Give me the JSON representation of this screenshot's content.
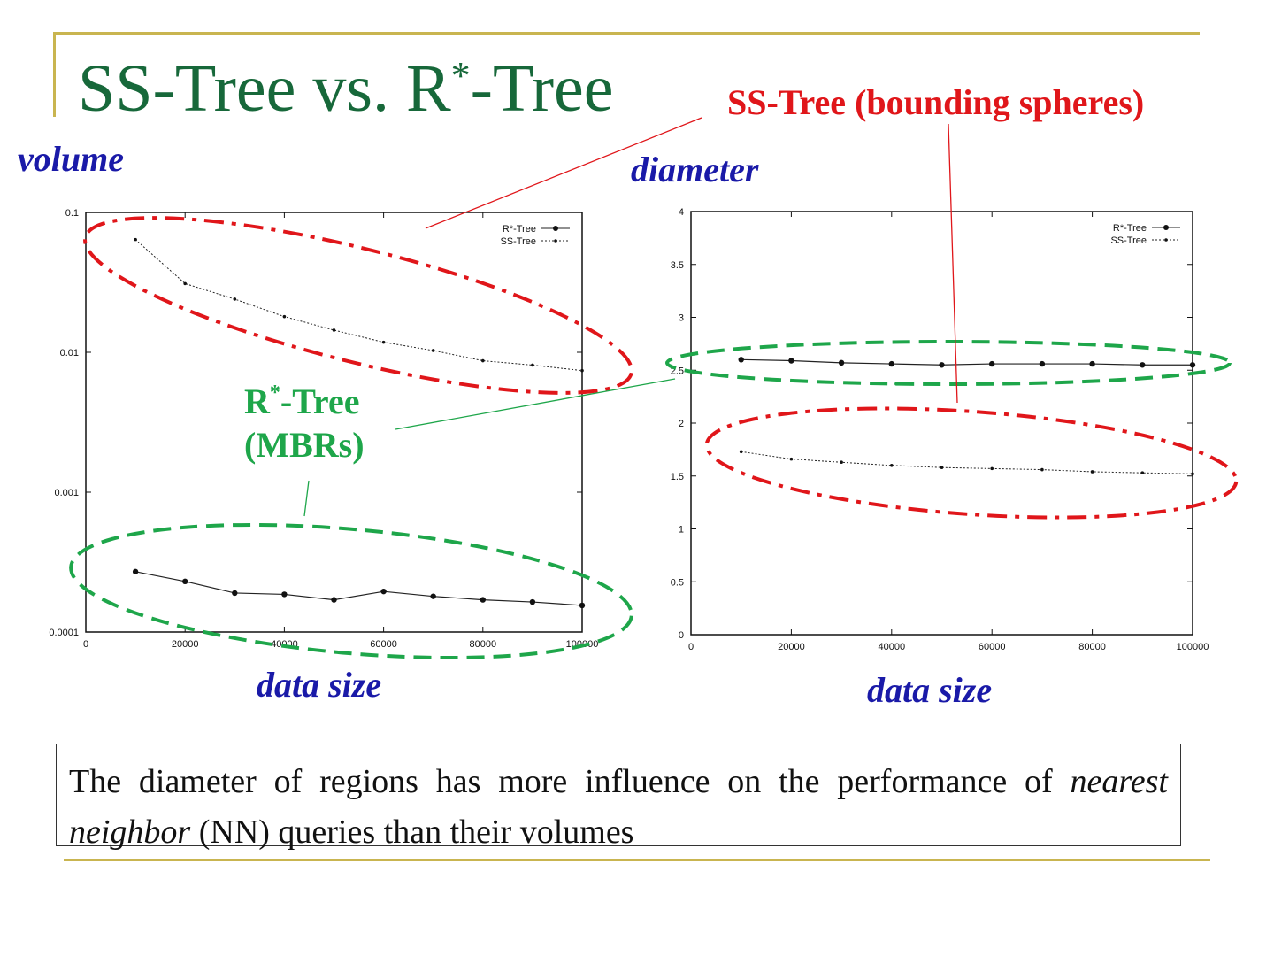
{
  "slide": {
    "title_main": "SS-Tree vs. R",
    "title_sup": "*",
    "title_end": "-Tree",
    "ss_annotation": "SS-Tree (bounding spheres)",
    "rstar_annotation_a": "R",
    "rstar_annotation_sup": "*",
    "rstar_annotation_b": "-Tree",
    "rstar_annotation_line2": "(MBRs)",
    "note_part1": "The diameter of regions has more influence on the performance of ",
    "note_italic": "nearest neighbor",
    "note_part2": " (NN) queries than their volumes",
    "colors": {
      "title": "#17683a",
      "ss": "#e0161a",
      "rstar": "#1ea64a",
      "axis_label": "#1a1aa8",
      "accent": "#c9b550"
    }
  },
  "chart_data": [
    {
      "type": "line",
      "title": "volume",
      "xlabel": "data size",
      "ylabel": "volume",
      "yscale": "log",
      "xlim": [
        0,
        100000
      ],
      "ylim": [
        0.0001,
        0.1
      ],
      "xticks": [
        "0",
        "20000",
        "40000",
        "60000",
        "80000",
        "100000"
      ],
      "yticks": [
        "0.0001",
        "0.001",
        "0.01",
        "0.1"
      ],
      "legend": "top-right",
      "x": [
        10000,
        20000,
        30000,
        40000,
        50000,
        60000,
        70000,
        80000,
        90000,
        100000
      ],
      "series": [
        {
          "name": "R*-Tree",
          "style": "solid",
          "values": [
            0.00027,
            0.00023,
            0.00019,
            0.000186,
            0.00017,
            0.000195,
            0.00018,
            0.00017,
            0.000164,
            0.000155
          ]
        },
        {
          "name": "SS-Tree",
          "style": "dotted",
          "values": [
            0.064,
            0.031,
            0.024,
            0.018,
            0.0144,
            0.0118,
            0.0103,
            0.0087,
            0.0081,
            0.0074
          ]
        }
      ]
    },
    {
      "type": "line",
      "title": "diameter",
      "xlabel": "data size",
      "ylabel": "diameter",
      "yscale": "linear",
      "xlim": [
        0,
        100000
      ],
      "ylim": [
        0,
        4
      ],
      "xticks": [
        "0",
        "20000",
        "40000",
        "60000",
        "80000",
        "100000"
      ],
      "yticks": [
        "0",
        "0.5",
        "1",
        "1.5",
        "2",
        "2.5",
        "3",
        "3.5",
        "4"
      ],
      "legend": "top-right",
      "x": [
        10000,
        20000,
        30000,
        40000,
        50000,
        60000,
        70000,
        80000,
        90000,
        100000
      ],
      "series": [
        {
          "name": "R*-Tree",
          "style": "solid",
          "values": [
            2.6,
            2.59,
            2.57,
            2.56,
            2.55,
            2.56,
            2.56,
            2.56,
            2.55,
            2.55
          ]
        },
        {
          "name": "SS-Tree",
          "style": "dotted",
          "values": [
            1.73,
            1.66,
            1.63,
            1.6,
            1.58,
            1.57,
            1.56,
            1.54,
            1.53,
            1.52
          ]
        }
      ]
    }
  ]
}
